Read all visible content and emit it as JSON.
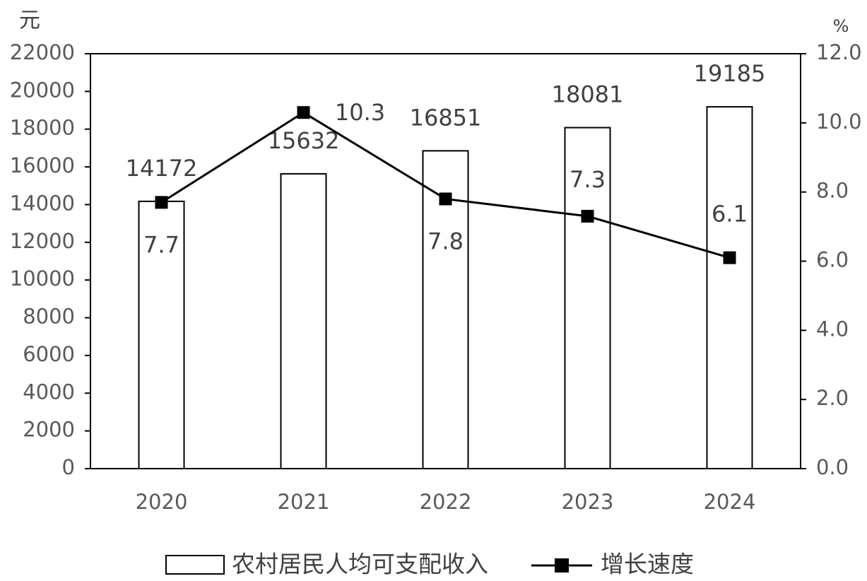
{
  "chart_data": {
    "type": "bar",
    "y_label": "元",
    "y2_label": "%",
    "categories": [
      "2020",
      "2021",
      "2022",
      "2023",
      "2024"
    ],
    "series": [
      {
        "name": "农村居民人均可支配收入",
        "type": "bar",
        "color": "#ffffff",
        "values": [
          14172,
          15632,
          16851,
          18081,
          19185
        ]
      },
      {
        "name": "增长速度",
        "type": "line",
        "axis": "y2",
        "color": "#000000",
        "values": [
          7.7,
          10.3,
          7.8,
          7.3,
          6.1
        ]
      }
    ],
    "ylim": [
      0,
      22000
    ],
    "yticks": [
      0,
      2000,
      4000,
      6000,
      8000,
      10000,
      12000,
      14000,
      16000,
      18000,
      20000,
      22000
    ],
    "y2lim": [
      0,
      12
    ],
    "y2ticks": [
      {
        "value": 0,
        "label": "0.0"
      },
      {
        "value": 2,
        "label": "2.0"
      },
      {
        "value": 4,
        "label": "4.0"
      },
      {
        "value": 6,
        "label": "6.0"
      },
      {
        "value": 8,
        "label": "8.0"
      },
      {
        "value": 10,
        "label": "10.0"
      },
      {
        "value": 12,
        "label": "12.0"
      }
    ],
    "grid": false,
    "legend": "bottom"
  }
}
